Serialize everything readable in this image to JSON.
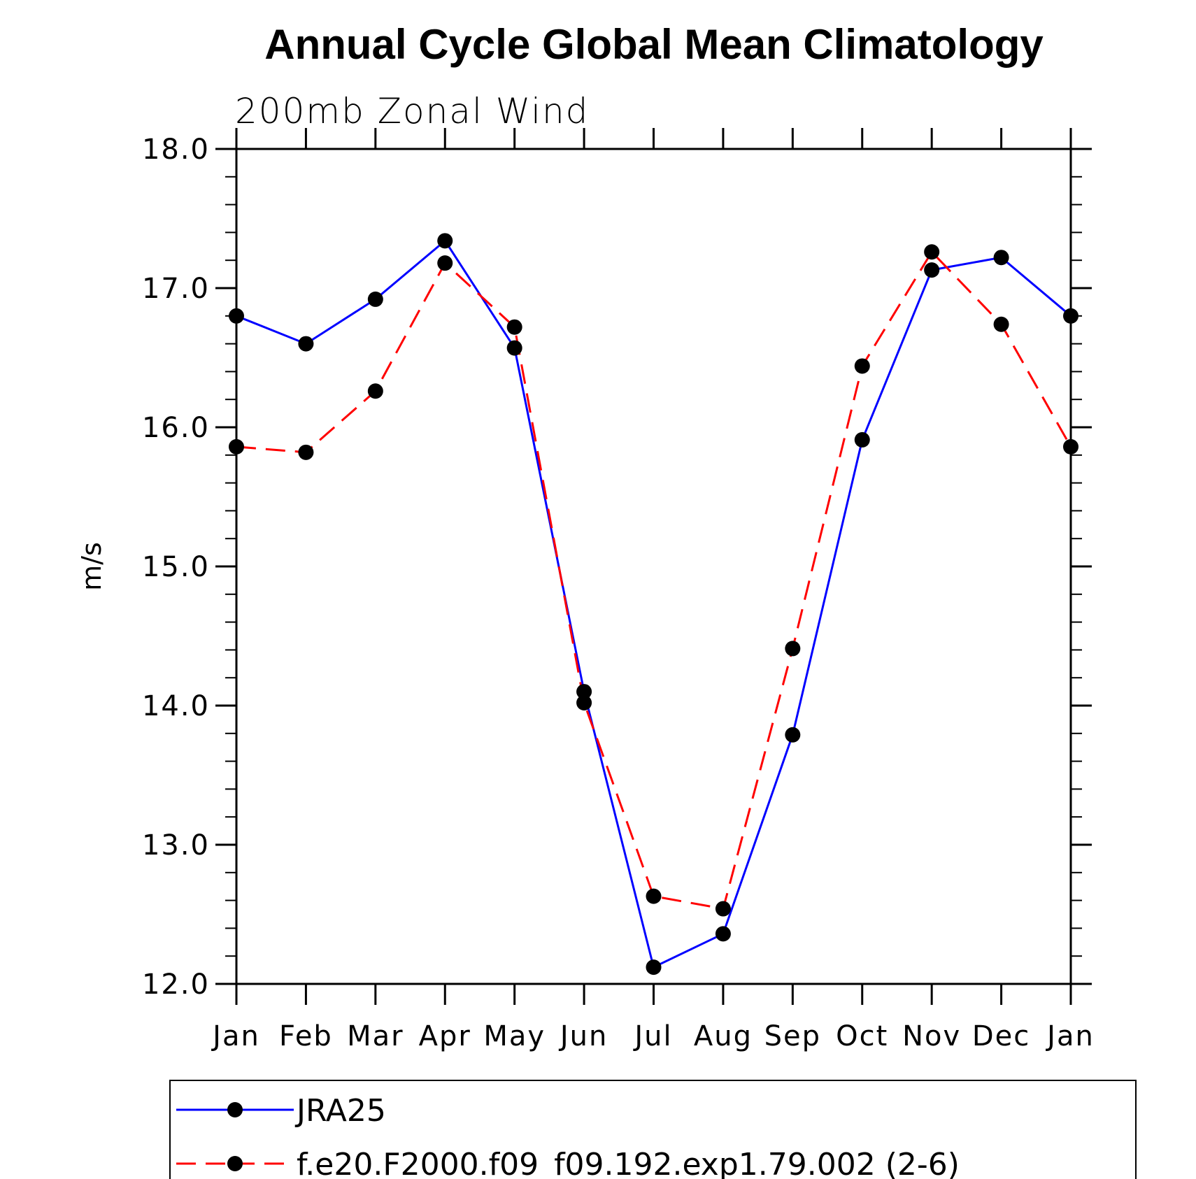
{
  "chart_data": {
    "type": "line",
    "title": "Annual Cycle Global Mean Climatology",
    "subtitle": "200mb  Zonal  Wind",
    "xlabel": "",
    "ylabel": "m/s",
    "categories": [
      "Jan",
      "Feb",
      "Mar",
      "Apr",
      "May",
      "Jun",
      "Jul",
      "Aug",
      "Sep",
      "Oct",
      "Nov",
      "Dec",
      "Jan"
    ],
    "ylim": [
      12.0,
      18.0
    ],
    "yticks": [
      "12.0",
      "13.0",
      "14.0",
      "15.0",
      "16.0",
      "17.0",
      "18.0"
    ],
    "grid": false,
    "legend_position": "bottom",
    "series": [
      {
        "name": "JRA25",
        "color": "#0000ff",
        "dash": "solid",
        "values": [
          16.8,
          16.6,
          16.92,
          17.34,
          16.57,
          14.1,
          12.12,
          12.36,
          13.79,
          15.91,
          17.13,
          17.22,
          16.8
        ]
      },
      {
        "name": "f.e20.F2000.f09_f09.192.exp1.79.002 (2-6)",
        "color": "#ff0000",
        "dash": "dashed",
        "values": [
          15.86,
          15.82,
          16.26,
          17.18,
          16.72,
          14.02,
          12.63,
          12.54,
          14.41,
          16.44,
          17.26,
          16.74,
          15.86
        ]
      }
    ]
  }
}
